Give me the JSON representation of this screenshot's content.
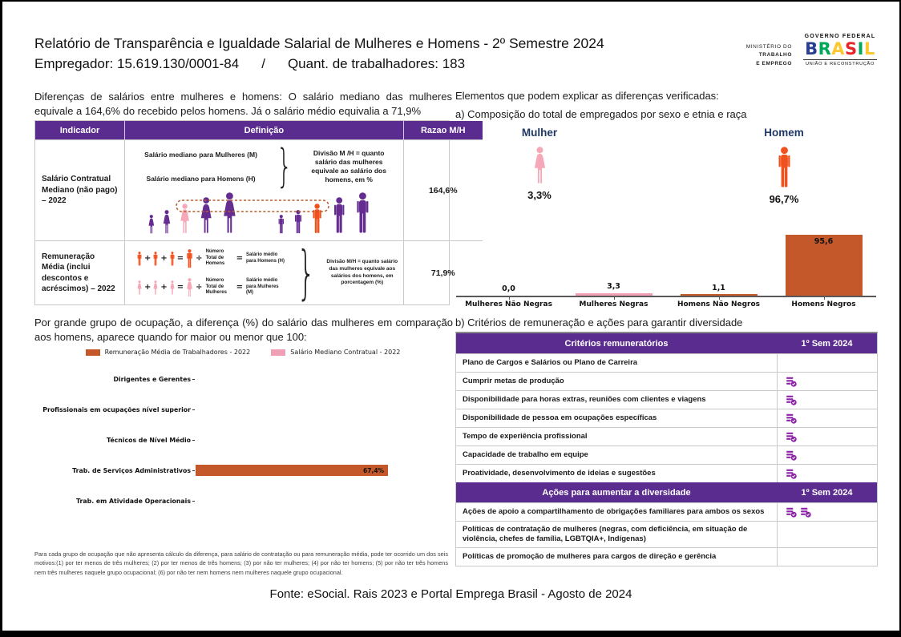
{
  "header": {
    "title": "Relatório de Transparência e Igualdade Salarial de Mulheres e Homens - 2º Semestre 2024",
    "employer_line": "Empregador: 15.619.130/0001-84",
    "separator": "/",
    "workers_line": "Quant. de trabalhadores: 183"
  },
  "gov_logo": {
    "ministry_line1": "MINISTÉRIO DO",
    "ministry_line2": "TRABALHO",
    "ministry_line3": "E EMPREGO",
    "federal": "GOVERNO FEDERAL",
    "brand": "BRASIL",
    "brand_colors": [
      "#2B3F92",
      "#00A859",
      "#FDC82F",
      "#E52528",
      "#00A859",
      "#FDC82F"
    ],
    "tagline": "UNIÃO E RECONSTRUÇÃO"
  },
  "left": {
    "intro": "Diferenças de salários entre mulheres e homens: O salário mediano das mulheres equivale a 164,6% do recebido pelos homens. Já o salário médio equivalia a 71,9%",
    "indicator_table": {
      "headers": [
        "Indicador",
        "Definição",
        "Razao M/H"
      ],
      "rows": [
        {
          "indicator": "Salário Contratual Mediano (não pago) – 2022",
          "def_line1": "Salário mediano para Mulheres (M)",
          "def_line2": "Salário mediano para Homens (H)",
          "def_note": "Divisão M /H = quanto salário das mulheres equivale ao salário dos homens, em %",
          "ratio": "164,6%"
        },
        {
          "indicator": "Remuneração Média (inclui descontos e acréscimos) – 2022",
          "men_divisor": "Número Total de Homens",
          "men_result": "Salário médio para Homens (H)",
          "women_divisor": "Número Total de Mulheres",
          "women_result": "Salário médio para Mulheres (M)",
          "def_note": "Divisão M/H = quanto salário das mulheres equivale aos salários dos homens, em porcentagem (%)",
          "ratio": "71,9%"
        }
      ]
    },
    "formula": {
      "plus": "+",
      "equals": "=",
      "divide": "÷"
    },
    "occupation_intro": "Por grande grupo de ocupação, a diferença (%) do salário das mulheres em comparação aos homens, aparece quando for maior ou menor que 100:",
    "footnote": "Para cada grupo de ocupação que não apresenta cálculo da diferença, para salário de contratação ou para remuneração média, pode ter ocorrido um dos seis motivos:(1) por ter menos de três mulheres; (2) por ter menos de três homens; (3) por não ter mulheres; (4) por não ter homens; (5) por não ter três homens nem três mulheres naquele grupo ocupacional; (6) por não ter nem homens nem mulheres naquele grupo ocupacional."
  },
  "right": {
    "elements_title": "Elementos que podem explicar as diferenças verificadas:",
    "composition_title": "a) Composição do total de empregados por sexo e etnia e raça",
    "gender": {
      "female_label": "Mulher",
      "female_value": "3,3%",
      "male_label": "Homem",
      "male_value": "96,7%"
    },
    "criteria_title": "b) Critérios de remuneração e ações para garantir diversidade",
    "criteria_table": {
      "header": [
        "Critérios remuneratórios",
        "1º Sem 2024"
      ],
      "rows": [
        {
          "label": "Plano de Cargos e Salários ou Plano de Carreira",
          "icons": 0
        },
        {
          "label": "Cumprir metas de produção",
          "icons": 1
        },
        {
          "label": "Disponibilidade para horas extras, reuniões com clientes e viagens",
          "icons": 1
        },
        {
          "label": "Disponibilidade de pessoa em ocupações específicas",
          "icons": 1
        },
        {
          "label": "Tempo de experiência profissional",
          "icons": 1
        },
        {
          "label": "Capacidade de trabalho em equipe",
          "icons": 1
        },
        {
          "label": "Proatividade, desenvolvimento de ideias e sugestões",
          "icons": 1
        }
      ],
      "actions_header": [
        "Ações para aumentar a diversidade",
        "1º Sem 2024"
      ],
      "actions_rows": [
        {
          "label": "Ações de apoio a compartilhamento de obrigações familiares para ambos os sexos",
          "icons": 2
        },
        {
          "label": "Políticas de contratação de mulheres (negras, com deficiência, em situação de violência, chefes de família, LGBTQIA+, Indígenas)",
          "icons": 0
        },
        {
          "label": "Políticas de promoção de mulheres para cargos de direção e gerência",
          "icons": 0
        }
      ]
    }
  },
  "footer": {
    "source": "Fonte: eSocial. Rais 2023 e Portal Emprega Brasil - Agosto de 2024"
  },
  "chart_data": [
    {
      "type": "bar",
      "title": "a) Composição do total de empregados por sexo e etnia e raça",
      "categories": [
        "Mulheres Não Negras",
        "Mulheres Negras",
        "Homens Não Negros",
        "Homens Negros"
      ],
      "values": [
        0.0,
        3.3,
        1.1,
        95.6
      ],
      "value_labels": [
        "0,0",
        "3,3",
        "1,1",
        "95,6"
      ],
      "bar_colors": [
        "#C4582A",
        "#F0A0B4",
        "#C4582A",
        "#C4582A"
      ],
      "ylim": [
        0,
        100
      ],
      "grid": false,
      "legend_position": "none"
    },
    {
      "type": "bar",
      "orientation": "horizontal",
      "title": "Diferença (%) do salário das mulheres em comparação aos homens, por grande grupo de ocupação",
      "categories": [
        "Dirigentes e Gerentes",
        "Profissionais em ocupações nível superior",
        "Técnicos de Nível Médio",
        "Trab. de Serviços Administrativos",
        "Trab. em Atividade Operacionais"
      ],
      "series": [
        {
          "name": "Remuneração Média de Trabalhadores - 2022",
          "color": "#C4582A",
          "values": [
            null,
            null,
            null,
            67.4,
            null
          ],
          "value_labels": [
            "",
            "",
            "",
            "67,4%",
            ""
          ]
        },
        {
          "name": "Salário Mediano Contratual - 2022",
          "color": "#F0A0B4",
          "values": [
            null,
            null,
            null,
            null,
            null
          ],
          "value_labels": [
            "",
            "",
            "",
            "",
            ""
          ]
        }
      ],
      "xlim": [
        0,
        89
      ],
      "grid": false,
      "legend_position": "top"
    }
  ],
  "colors": {
    "purple_header": "#5B2C8F",
    "purple_figure": "#662D91",
    "orange_figure": "#F0521E",
    "pink_figure": "#F5A8B8",
    "bar_orange": "#C4582A",
    "bar_pink": "#F0A0B4",
    "navy_title": "#1F3864",
    "icon_purple": "#8E24AA",
    "dashed_box": "#B85C2B"
  }
}
